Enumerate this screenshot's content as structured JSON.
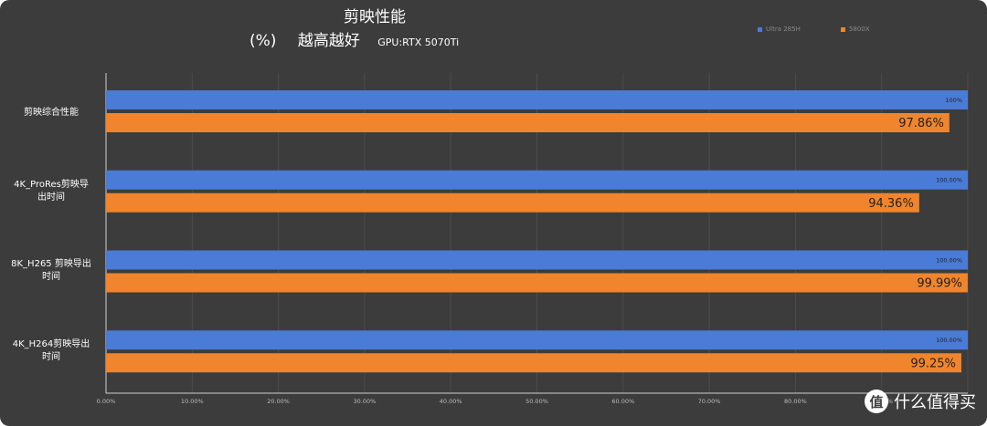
{
  "chart_data": {
    "type": "bar",
    "orientation": "horizontal",
    "title": "剪映性能",
    "subtitle_unit": "(%)",
    "subtitle_note": "越高越好",
    "gpu_note": "GPU:RTX 5070Ti",
    "categories": [
      "剪映综合性能",
      "4K_ProRes剪映导出时间",
      "8K_H265 剪映导出时间",
      "4K_H264剪映导出时间"
    ],
    "category_label_lines": [
      [
        "剪映综合性能"
      ],
      [
        "4K_ProRes剪映导",
        "出时间"
      ],
      [
        "8K_H265 剪映导出",
        "时间"
      ],
      [
        "4K_H264剪映导出",
        "时间"
      ]
    ],
    "series": [
      {
        "name": "Ultra 285H",
        "color": "#4a7bd6",
        "values": [
          100,
          100,
          100,
          100
        ],
        "labels": [
          "100%",
          "100.00%",
          "100.00%",
          "100.00%"
        ]
      },
      {
        "name": "5800X",
        "color": "#f0852d",
        "values": [
          97.86,
          94.36,
          99.99,
          99.25
        ],
        "labels": [
          "97.86%",
          "94.36%",
          "99.99%",
          "99.25%"
        ]
      }
    ],
    "xlim": [
      0,
      100
    ],
    "xticks": [
      0,
      10,
      20,
      30,
      40,
      50,
      60,
      70,
      80,
      90
    ],
    "xtick_labels": [
      "0.00%",
      "10.00%",
      "20.00%",
      "30.00%",
      "40.00%",
      "50.00%",
      "60.00%",
      "70.00%",
      "80.00%",
      "90.00%"
    ],
    "grid": true,
    "legend_position": "top-right",
    "grid_color": "#4c4c4c",
    "axis_color": "#cfcfcf",
    "background": "#3c3c3c"
  },
  "watermark": {
    "logo_glyph": "值",
    "text": "什么值得买"
  }
}
